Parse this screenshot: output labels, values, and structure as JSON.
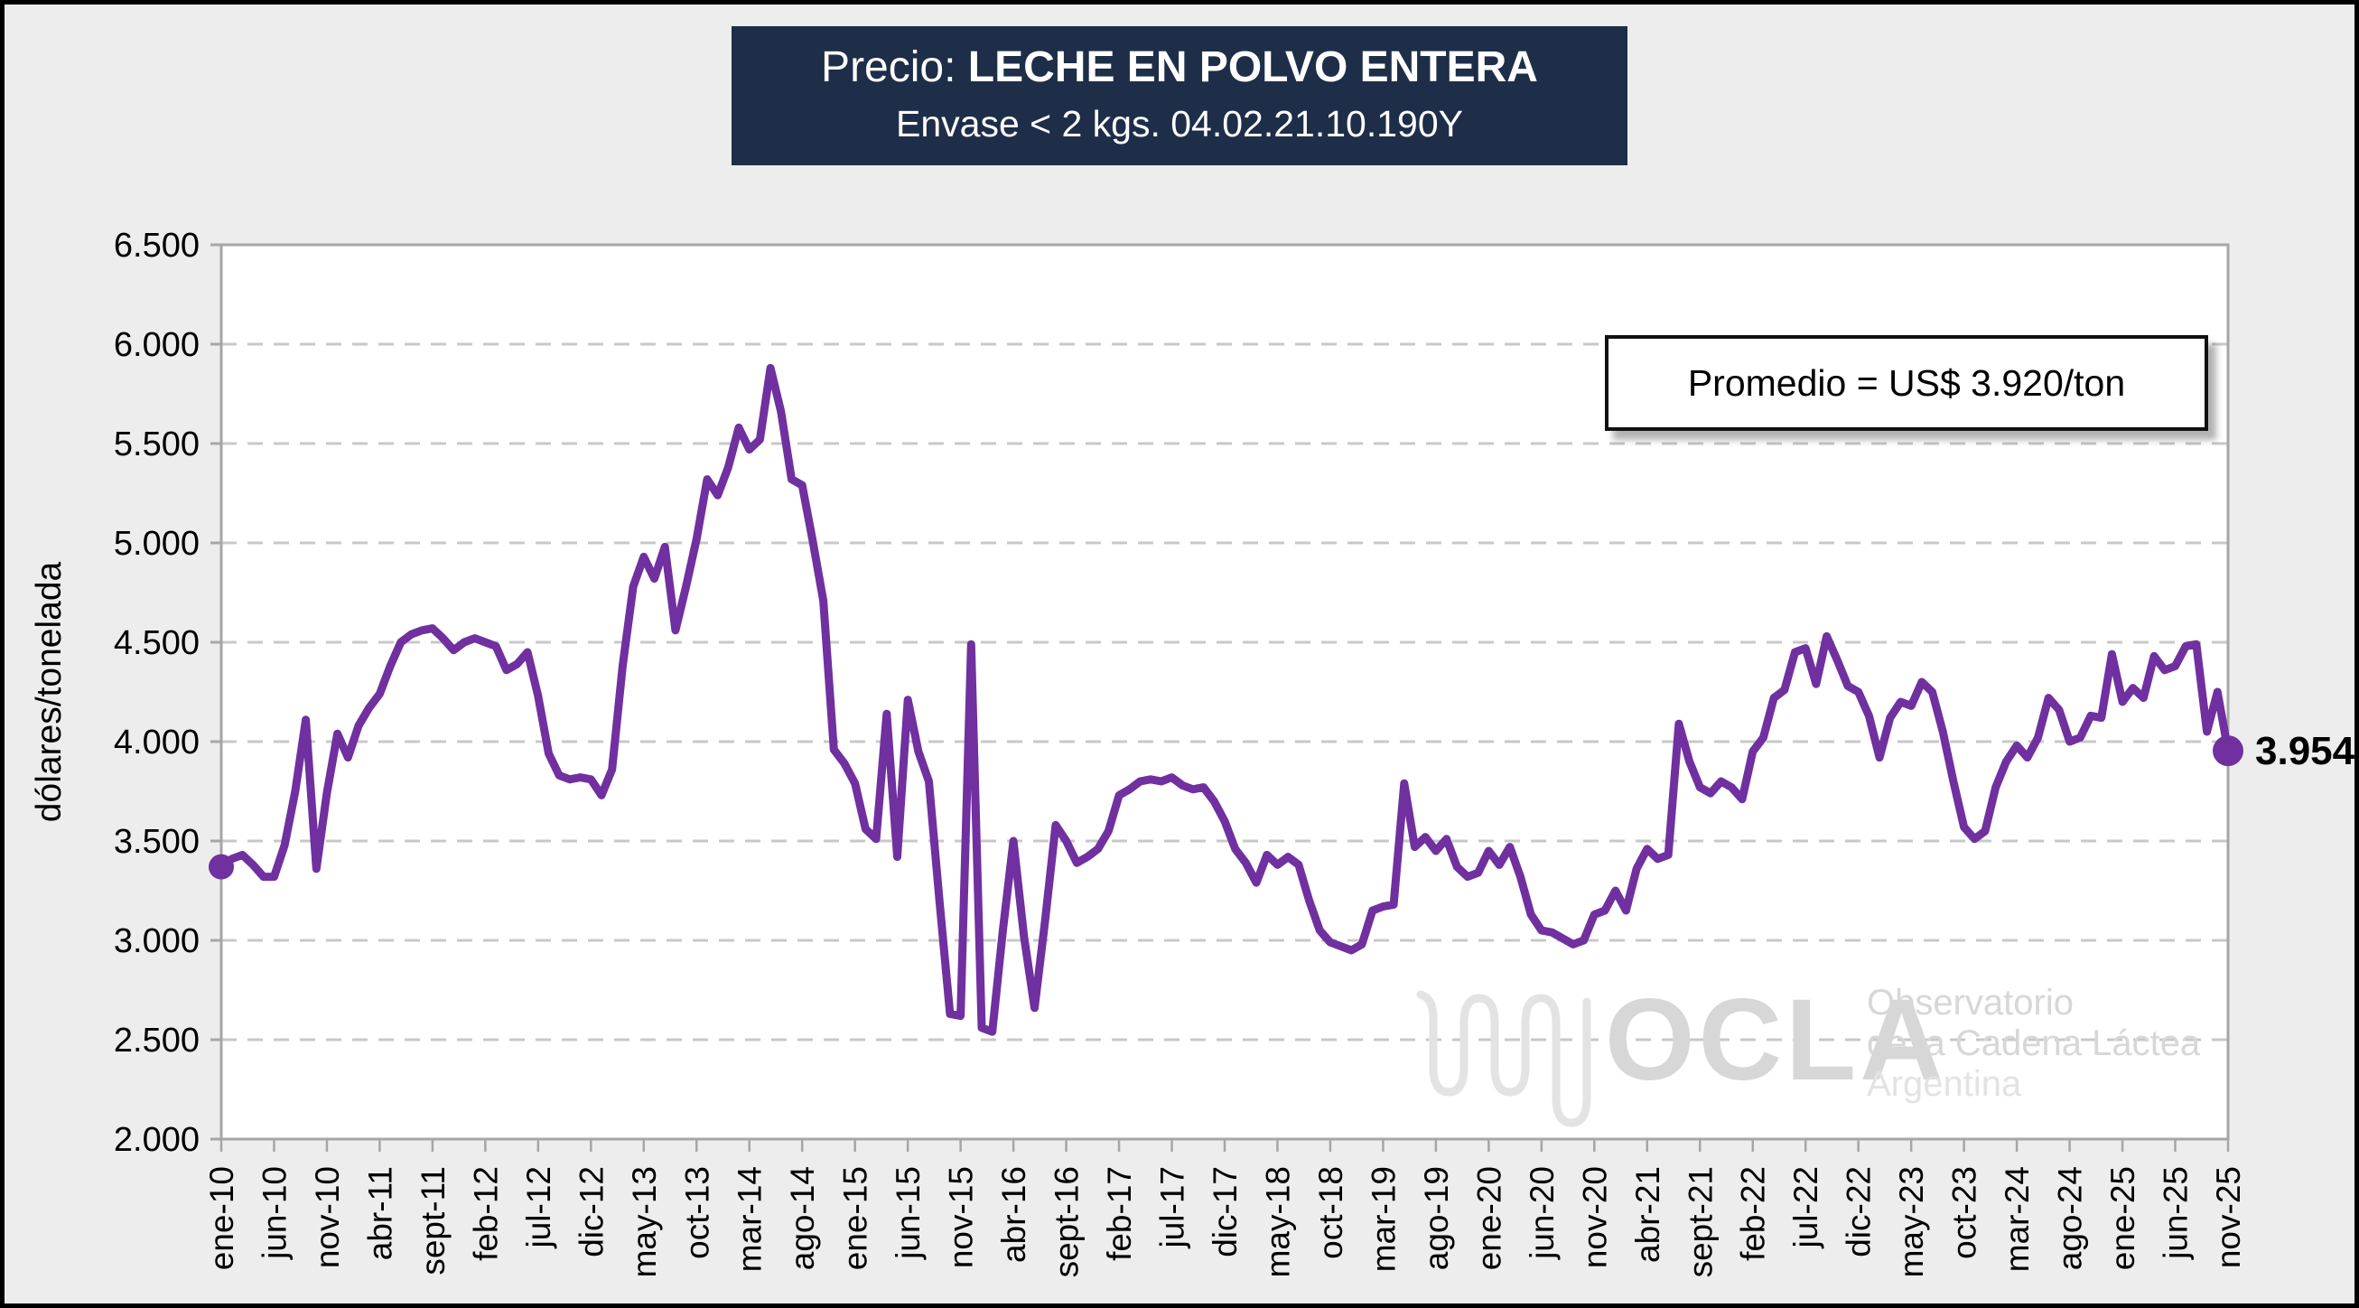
{
  "title": {
    "prefix": "Precio: ",
    "main": "LECHE EN POLVO ENTERA",
    "subtitle": "Envase < 2 kgs. 04.02.21.10.190Y"
  },
  "annotation": {
    "text": "Promedio = US$ 3.920/ton"
  },
  "end_label": "3.954",
  "watermark": {
    "acronym": "OCLA",
    "line1": "Observatorio",
    "line2": "de la Cadena Láctea",
    "line3": "Argentina"
  },
  "colors": {
    "line": "#7030A0",
    "title_bg": "#1e2e49",
    "grid": "#c8c8c8",
    "plot_border": "#a6a6a6",
    "background": "#ededed",
    "watermark": "#d7d7d7",
    "watermark_light": "#e3e3e3"
  },
  "chart_data": {
    "type": "line",
    "title": "Precio: LECHE EN POLVO ENTERA",
    "subtitle": "Envase < 2 kgs. 04.02.21.10.190Y",
    "ylabel": "dólares/tonelada",
    "xlabel": "",
    "ylim": [
      2000,
      6500
    ],
    "ytick_values": [
      6500,
      6000,
      5500,
      5000,
      4500,
      4000,
      3500,
      3000,
      2500,
      2000
    ],
    "ytick_labels": [
      "6.500",
      "6.000",
      "5.500",
      "5.000",
      "4.500",
      "4.000",
      "3.500",
      "3.000",
      "2.500",
      "2.000"
    ],
    "grid": "dashed-horizontal",
    "legend_position": "none",
    "x_unit": "month",
    "x_range": [
      "ene-10",
      "nov-25"
    ],
    "xtick_every": 5,
    "xtick_labels": [
      "ene-10",
      "jun-10",
      "nov-10",
      "abr-11",
      "sept-11",
      "feb-12",
      "jul-12",
      "dic-12",
      "may-13",
      "oct-13",
      "mar-14",
      "ago-14",
      "ene-15",
      "jun-15",
      "nov-15",
      "abr-16",
      "sept-16",
      "feb-17",
      "jul-17",
      "dic-17",
      "may-18",
      "oct-18",
      "mar-19",
      "ago-19",
      "ene-20",
      "jun-20",
      "nov-20",
      "abr-21",
      "sept-21",
      "feb-22",
      "jul-22",
      "dic-22",
      "may-23",
      "oct-23",
      "mar-24",
      "ago-24",
      "ene-25",
      "jun-25",
      "nov-25"
    ],
    "average_value": 3920,
    "last_value": 3954,
    "series": [
      {
        "name": "Precio leche en polvo entera (US$/ton)",
        "color": "#7030A0",
        "values": [
          3370,
          3410,
          3430,
          3380,
          3320,
          3320,
          3480,
          3750,
          4110,
          3360,
          3740,
          4040,
          3920,
          4080,
          4170,
          4240,
          4380,
          4500,
          4540,
          4560,
          4570,
          4520,
          4460,
          4500,
          4520,
          4500,
          4480,
          4360,
          4390,
          4450,
          4230,
          3940,
          3830,
          3810,
          3820,
          3810,
          3730,
          3860,
          4380,
          4780,
          4930,
          4820,
          4980,
          4560,
          4780,
          5020,
          5320,
          5240,
          5380,
          5580,
          5470,
          5520,
          5880,
          5660,
          5320,
          5290,
          5010,
          4710,
          3960,
          3890,
          3790,
          3560,
          3510,
          4140,
          3420,
          4210,
          3950,
          3800,
          3200,
          2630,
          2620,
          4490,
          2560,
          2540,
          3050,
          3500,
          3020,
          2660,
          3100,
          3580,
          3500,
          3390,
          3420,
          3460,
          3550,
          3730,
          3760,
          3800,
          3810,
          3800,
          3820,
          3780,
          3760,
          3770,
          3700,
          3600,
          3460,
          3390,
          3290,
          3430,
          3380,
          3420,
          3380,
          3200,
          3050,
          2990,
          2970,
          2950,
          2980,
          3150,
          3170,
          3180,
          3790,
          3470,
          3520,
          3450,
          3510,
          3370,
          3320,
          3340,
          3450,
          3380,
          3470,
          3320,
          3130,
          3050,
          3040,
          3010,
          2980,
          3000,
          3130,
          3150,
          3250,
          3150,
          3360,
          3460,
          3410,
          3430,
          4090,
          3900,
          3770,
          3740,
          3800,
          3770,
          3710,
          3950,
          4020,
          4220,
          4260,
          4450,
          4470,
          4290,
          4530,
          4410,
          4280,
          4250,
          4130,
          3920,
          4120,
          4200,
          4180,
          4300,
          4250,
          4050,
          3800,
          3570,
          3510,
          3550,
          3770,
          3900,
          3980,
          3920,
          4020,
          4220,
          4160,
          4000,
          4020,
          4130,
          4120,
          4440,
          4200,
          4270,
          4220,
          4430,
          4360,
          4380,
          4480,
          4490,
          4050,
          4250,
          3954
        ]
      }
    ]
  }
}
